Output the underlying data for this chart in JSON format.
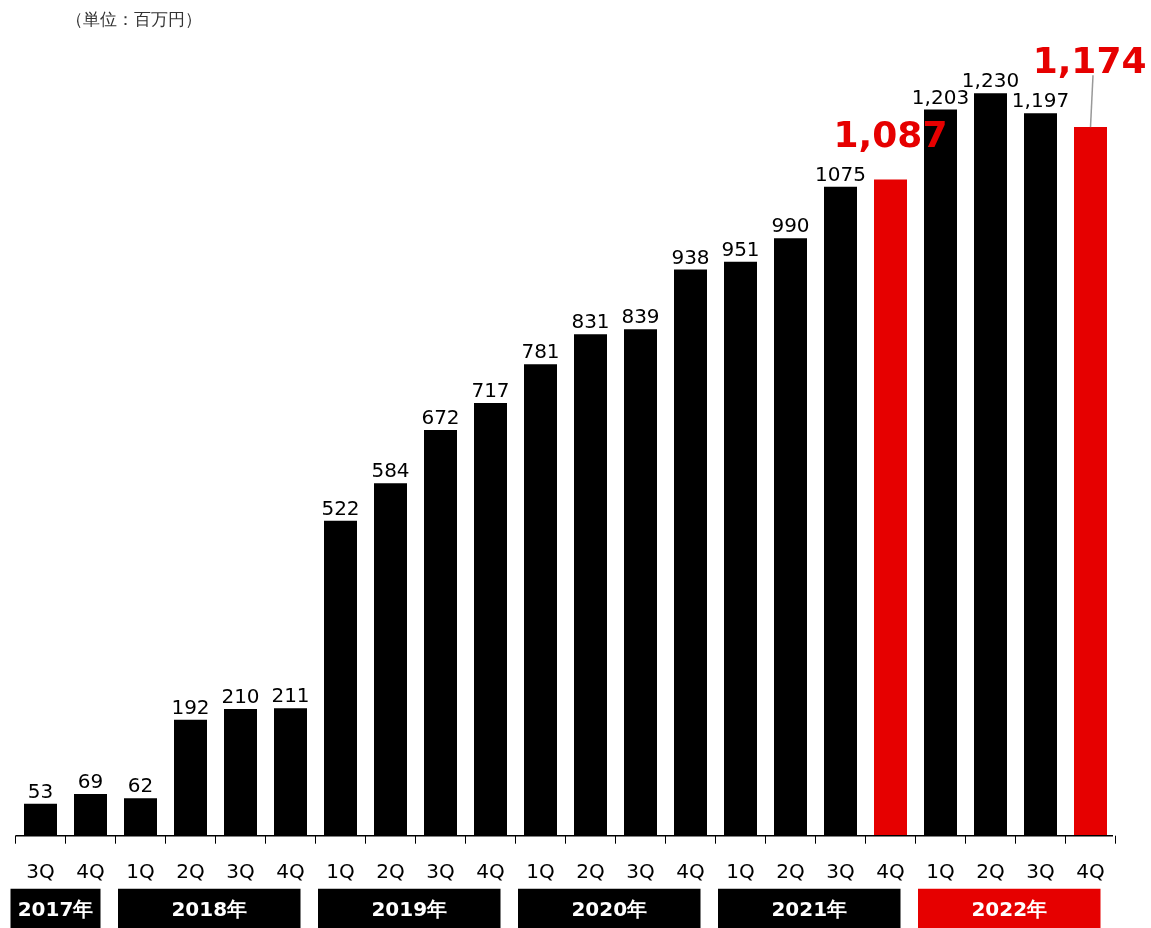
{
  "chart_data": {
    "type": "bar",
    "subtitle": "（単位：百万円）",
    "categories": [
      "3Q",
      "4Q",
      "1Q",
      "2Q",
      "3Q",
      "4Q",
      "1Q",
      "2Q",
      "3Q",
      "4Q",
      "1Q",
      "2Q",
      "3Q",
      "4Q",
      "1Q",
      "2Q",
      "3Q",
      "4Q",
      "1Q",
      "2Q",
      "3Q",
      "4Q"
    ],
    "values": [
      53,
      69,
      62,
      192,
      210,
      211,
      522,
      584,
      672,
      717,
      781,
      831,
      839,
      938,
      951,
      990,
      1075,
      1087,
      1203,
      1230,
      1197,
      1174
    ],
    "colors": [
      "#000000",
      "#000000",
      "#000000",
      "#000000",
      "#000000",
      "#000000",
      "#000000",
      "#000000",
      "#000000",
      "#000000",
      "#000000",
      "#000000",
      "#000000",
      "#000000",
      "#000000",
      "#000000",
      "#000000",
      "#e60000",
      "#000000",
      "#000000",
      "#000000",
      "#e60000"
    ],
    "value_labels": [
      "53",
      "69",
      "62",
      "192",
      "210",
      "211",
      "522",
      "584",
      "672",
      "717",
      "781",
      "831",
      "839",
      "938",
      "951",
      "990",
      "1075",
      "1,087",
      "1,203",
      "1,230",
      "1,197",
      "1,174"
    ],
    "annotations": [
      "2017年",
      "2018年",
      "2019年",
      "2020年",
      "2021年",
      "2022年"
    ],
    "grid": false
  }
}
